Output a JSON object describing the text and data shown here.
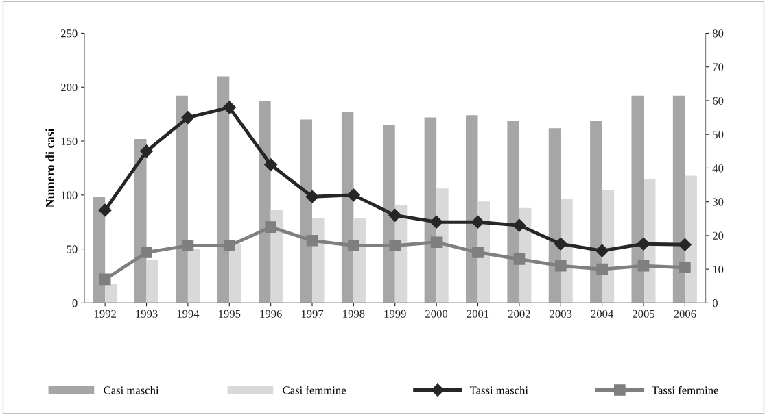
{
  "chart_data": {
    "type": "bar",
    "ylabel": "Numero di casi",
    "categories": [
      "1992",
      "1993",
      "1994",
      "1995",
      "1996",
      "1997",
      "1998",
      "1999",
      "2000",
      "2001",
      "2002",
      "2003",
      "2004",
      "2005",
      "2006"
    ],
    "series": [
      {
        "name": "Casi maschi",
        "color": "#a6a6a6",
        "values": [
          98,
          152,
          192,
          210,
          187,
          170,
          177,
          165,
          172,
          174,
          169,
          162,
          169,
          192,
          192
        ]
      },
      {
        "name": "Casi femmine",
        "color": "#d9d9d9",
        "values": [
          18,
          40,
          50,
          55,
          86,
          79,
          79,
          91,
          106,
          94,
          88,
          96,
          105,
          115,
          118
        ]
      },
      {
        "name": "Tassi maschi",
        "type": "line",
        "axis": "y2",
        "marker": "diamond",
        "color": "#262626",
        "values": [
          27.5,
          45,
          55,
          58,
          41,
          31.5,
          32,
          26,
          24,
          24,
          23,
          17.5,
          15.5,
          17.5,
          17.3
        ]
      },
      {
        "name": "Tassi femmine",
        "type": "line",
        "axis": "y2",
        "marker": "square",
        "color": "#7f7f7f",
        "values": [
          7,
          15,
          17,
          17,
          22.5,
          18.5,
          17,
          17,
          18,
          15,
          13,
          11,
          10,
          11,
          10.5
        ]
      }
    ],
    "ylim": [
      0,
      250
    ],
    "yticks": [
      0,
      50,
      100,
      150,
      200,
      250
    ],
    "y2lim": [
      0,
      80
    ],
    "y2ticks": [
      0,
      10,
      20,
      30,
      40,
      50,
      60,
      70,
      80
    ],
    "grid": false,
    "legend": "bottom"
  }
}
